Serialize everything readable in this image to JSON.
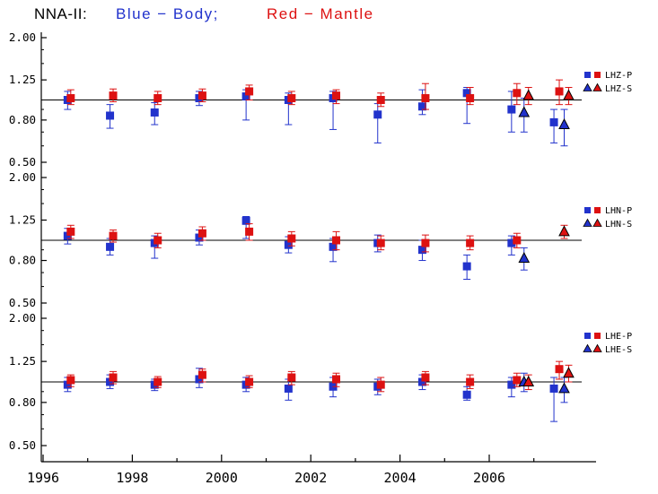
{
  "title": {
    "station": "NNA-II:",
    "body_label": "Blue − Body;",
    "mantle_label": "Red − Mantle"
  },
  "colors": {
    "body": "#2233cc",
    "mantle": "#dd1111",
    "axis": "#000000"
  },
  "chart_data": {
    "type": "scatter",
    "title": "NNA-II: Blue − Body; Red − Mantle",
    "grid": false,
    "legend_position": "right",
    "x_axis": {
      "range": [
        1996,
        2008.4
      ],
      "major_ticks": [
        1996,
        1998,
        2000,
        2002,
        2004,
        2006
      ],
      "major_tick_labels": [
        "1996",
        "1998",
        "2000",
        "2002",
        "2004",
        "2006"
      ],
      "minor_ticks": [
        1997,
        1999,
        2001,
        2003,
        2005,
        2007
      ]
    },
    "y_axis": {
      "scale": "log",
      "min": 0.5,
      "max": 2.0,
      "ticks": [
        2.0,
        1.25,
        0.8,
        0.5
      ],
      "tick_labels": [
        "2.00",
        "1.25",
        "0.80",
        "0.50"
      ],
      "minor_ticks": [
        1.75,
        1.5,
        1.0,
        0.9,
        0.7,
        0.6
      ],
      "reference_line": 1.0
    },
    "panels": [
      {
        "name": "LHZ",
        "legend_p": "LHZ-P",
        "legend_s": "LHZ-S",
        "series": [
          {
            "name": "body-P",
            "marker": "square",
            "color": "body",
            "points": [
              [
                1996.55,
                1.0,
                0.9,
                1.1
              ],
              [
                1997.5,
                0.84,
                0.73,
                0.95
              ],
              [
                1998.5,
                0.87,
                0.76,
                0.97
              ],
              [
                1999.5,
                1.02,
                0.94,
                1.1
              ],
              [
                2000.55,
                1.04,
                0.8,
                1.12
              ],
              [
                2001.5,
                1.0,
                0.76,
                1.08
              ],
              [
                2002.5,
                1.02,
                0.72,
                1.1
              ],
              [
                2003.5,
                0.85,
                0.62,
                0.96
              ],
              [
                2004.5,
                0.93,
                0.85,
                1.12
              ],
              [
                2005.5,
                1.08,
                0.77,
                1.15
              ],
              [
                2006.5,
                0.9,
                0.7,
                1.1
              ],
              [
                2007.45,
                0.78,
                0.62,
                0.9
              ]
            ]
          },
          {
            "name": "mantle-P",
            "marker": "square",
            "color": "mantle",
            "points": [
              [
                1996.62,
                1.02,
                0.95,
                1.12
              ],
              [
                1997.57,
                1.05,
                0.98,
                1.13
              ],
              [
                1998.57,
                1.02,
                0.95,
                1.1
              ],
              [
                1999.57,
                1.05,
                0.98,
                1.13
              ],
              [
                2000.62,
                1.1,
                1.0,
                1.18
              ],
              [
                2001.57,
                1.02,
                0.95,
                1.1
              ],
              [
                2002.57,
                1.05,
                0.96,
                1.12
              ],
              [
                2003.57,
                1.0,
                0.93,
                1.08
              ],
              [
                2004.57,
                1.02,
                0.9,
                1.2
              ],
              [
                2005.57,
                1.02,
                0.95,
                1.15
              ],
              [
                2006.62,
                1.08,
                0.95,
                1.2
              ],
              [
                2007.57,
                1.1,
                0.95,
                1.25
              ]
            ]
          },
          {
            "name": "body-S",
            "marker": "triangle",
            "color": "body",
            "points": [
              [
                2006.78,
                0.87,
                0.7,
                1.02
              ],
              [
                2007.68,
                0.76,
                0.6,
                0.9
              ]
            ]
          },
          {
            "name": "mantle-S",
            "marker": "triangle",
            "color": "mantle",
            "points": [
              [
                2006.88,
                1.05,
                0.95,
                1.15
              ],
              [
                2007.78,
                1.05,
                0.95,
                1.15
              ]
            ]
          }
        ]
      },
      {
        "name": "LHN",
        "legend_p": "LHN-P",
        "legend_s": "LHN-S",
        "series": [
          {
            "name": "body-P",
            "marker": "square",
            "color": "body",
            "points": [
              [
                1996.55,
                1.05,
                0.96,
                1.14
              ],
              [
                1997.5,
                0.93,
                0.85,
                1.02
              ],
              [
                1998.5,
                0.97,
                0.82,
                1.05
              ],
              [
                1999.5,
                1.03,
                0.95,
                1.12
              ],
              [
                2000.55,
                1.24,
                1.02,
                1.3
              ],
              [
                2001.5,
                0.95,
                0.87,
                1.04
              ],
              [
                2002.5,
                0.93,
                0.79,
                1.02
              ],
              [
                2003.5,
                0.97,
                0.88,
                1.06
              ],
              [
                2004.5,
                0.9,
                0.8,
                1.0
              ],
              [
                2005.5,
                0.75,
                0.65,
                0.85
              ],
              [
                2006.5,
                0.97,
                0.85,
                1.05
              ]
            ]
          },
          {
            "name": "mantle-P",
            "marker": "square",
            "color": "mantle",
            "points": [
              [
                1996.62,
                1.1,
                1.02,
                1.18
              ],
              [
                1997.57,
                1.05,
                0.98,
                1.12
              ],
              [
                1998.57,
                1.0,
                0.92,
                1.08
              ],
              [
                1999.57,
                1.08,
                1.0,
                1.16
              ],
              [
                2000.62,
                1.1,
                1.0,
                1.2
              ],
              [
                2001.57,
                1.02,
                0.94,
                1.1
              ],
              [
                2002.57,
                1.0,
                0.9,
                1.1
              ],
              [
                2003.57,
                0.97,
                0.9,
                1.05
              ],
              [
                2004.57,
                0.97,
                0.88,
                1.06
              ],
              [
                2005.57,
                0.97,
                0.9,
                1.05
              ],
              [
                2006.62,
                1.0,
                0.92,
                1.08
              ]
            ]
          },
          {
            "name": "body-S",
            "marker": "triangle",
            "color": "body",
            "points": [
              [
                2006.78,
                0.82,
                0.72,
                0.92
              ]
            ]
          },
          {
            "name": "mantle-S",
            "marker": "triangle",
            "color": "mantle",
            "points": [
              [
                2007.68,
                1.1,
                1.02,
                1.18
              ]
            ]
          }
        ]
      },
      {
        "name": "LHE",
        "legend_p": "LHE-P",
        "legend_s": "LHE-S",
        "series": [
          {
            "name": "body-P",
            "marker": "square",
            "color": "body",
            "points": [
              [
                1996.55,
                0.97,
                0.9,
                1.05
              ],
              [
                1997.5,
                1.0,
                0.93,
                1.08
              ],
              [
                1998.5,
                0.97,
                0.91,
                1.03
              ],
              [
                1999.5,
                1.03,
                0.94,
                1.16
              ],
              [
                2000.55,
                0.97,
                0.9,
                1.05
              ],
              [
                2001.5,
                0.93,
                0.82,
                1.03
              ],
              [
                2002.5,
                0.95,
                0.85,
                1.05
              ],
              [
                2003.5,
                0.95,
                0.87,
                1.03
              ],
              [
                2004.5,
                1.0,
                0.92,
                1.08
              ],
              [
                2005.5,
                0.87,
                0.82,
                0.95
              ],
              [
                2006.5,
                0.97,
                0.85,
                1.05
              ],
              [
                2007.45,
                0.93,
                0.65,
                1.05
              ]
            ]
          },
          {
            "name": "mantle-P",
            "marker": "square",
            "color": "mantle",
            "points": [
              [
                1996.62,
                1.02,
                0.95,
                1.08
              ],
              [
                1997.57,
                1.05,
                0.98,
                1.12
              ],
              [
                1998.57,
                1.0,
                0.94,
                1.06
              ],
              [
                1999.57,
                1.08,
                1.0,
                1.15
              ],
              [
                2000.62,
                1.0,
                0.94,
                1.07
              ],
              [
                2001.57,
                1.05,
                0.97,
                1.12
              ],
              [
                2002.57,
                1.03,
                0.95,
                1.1
              ],
              [
                2003.57,
                0.97,
                0.9,
                1.05
              ],
              [
                2004.57,
                1.05,
                0.97,
                1.12
              ],
              [
                2005.57,
                1.0,
                0.93,
                1.08
              ],
              [
                2006.62,
                1.02,
                0.95,
                1.1
              ],
              [
                2007.57,
                1.15,
                1.03,
                1.25
              ]
            ]
          },
          {
            "name": "body-S",
            "marker": "triangle",
            "color": "body",
            "points": [
              [
                2006.78,
                1.0,
                0.9,
                1.1
              ],
              [
                2007.68,
                0.93,
                0.8,
                1.05
              ]
            ]
          },
          {
            "name": "mantle-S",
            "marker": "triangle",
            "color": "mantle",
            "points": [
              [
                2006.88,
                1.0,
                0.92,
                1.08
              ],
              [
                2007.78,
                1.1,
                1.0,
                1.2
              ]
            ]
          }
        ]
      }
    ]
  }
}
